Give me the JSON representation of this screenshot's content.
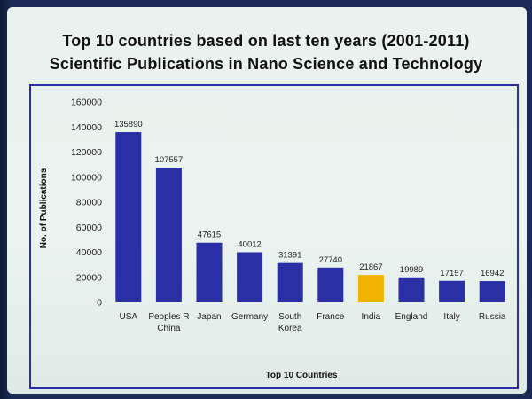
{
  "chart_data": {
    "type": "bar",
    "title_lines": [
      "Top 10 countries based on last ten years (2001-2011)",
      "Scientific Publications in Nano Science and Technology"
    ],
    "xlabel": "Top 10 Countries",
    "ylabel": "No. of Publications",
    "ylim": [
      0,
      160000
    ],
    "yticks": [
      0,
      20000,
      40000,
      60000,
      80000,
      100000,
      120000,
      140000,
      160000
    ],
    "ytick_labels": [
      "0",
      "20000",
      "40000",
      "60000",
      "80000",
      "100000",
      "120000",
      "140000",
      "160000"
    ],
    "categories": [
      [
        "USA"
      ],
      [
        "Peoples R",
        "China"
      ],
      [
        "Japan"
      ],
      [
        "Germany"
      ],
      [
        "South",
        "Korea"
      ],
      [
        "France"
      ],
      [
        "India"
      ],
      [
        "England"
      ],
      [
        "Italy"
      ],
      [
        "Russia"
      ]
    ],
    "values": [
      135890,
      107557,
      47615,
      40012,
      31391,
      27740,
      21867,
      19989,
      17157,
      16942
    ],
    "value_labels": [
      "135890",
      "107557",
      "47615",
      "40012",
      "31391",
      "27740",
      "21867",
      "19989",
      "17157",
      "16942"
    ],
    "highlight_index": 6,
    "colors": {
      "bar": "#2a2fa6",
      "highlight": "#f0b400",
      "frame": "#2a2fa6"
    },
    "grid": false
  }
}
